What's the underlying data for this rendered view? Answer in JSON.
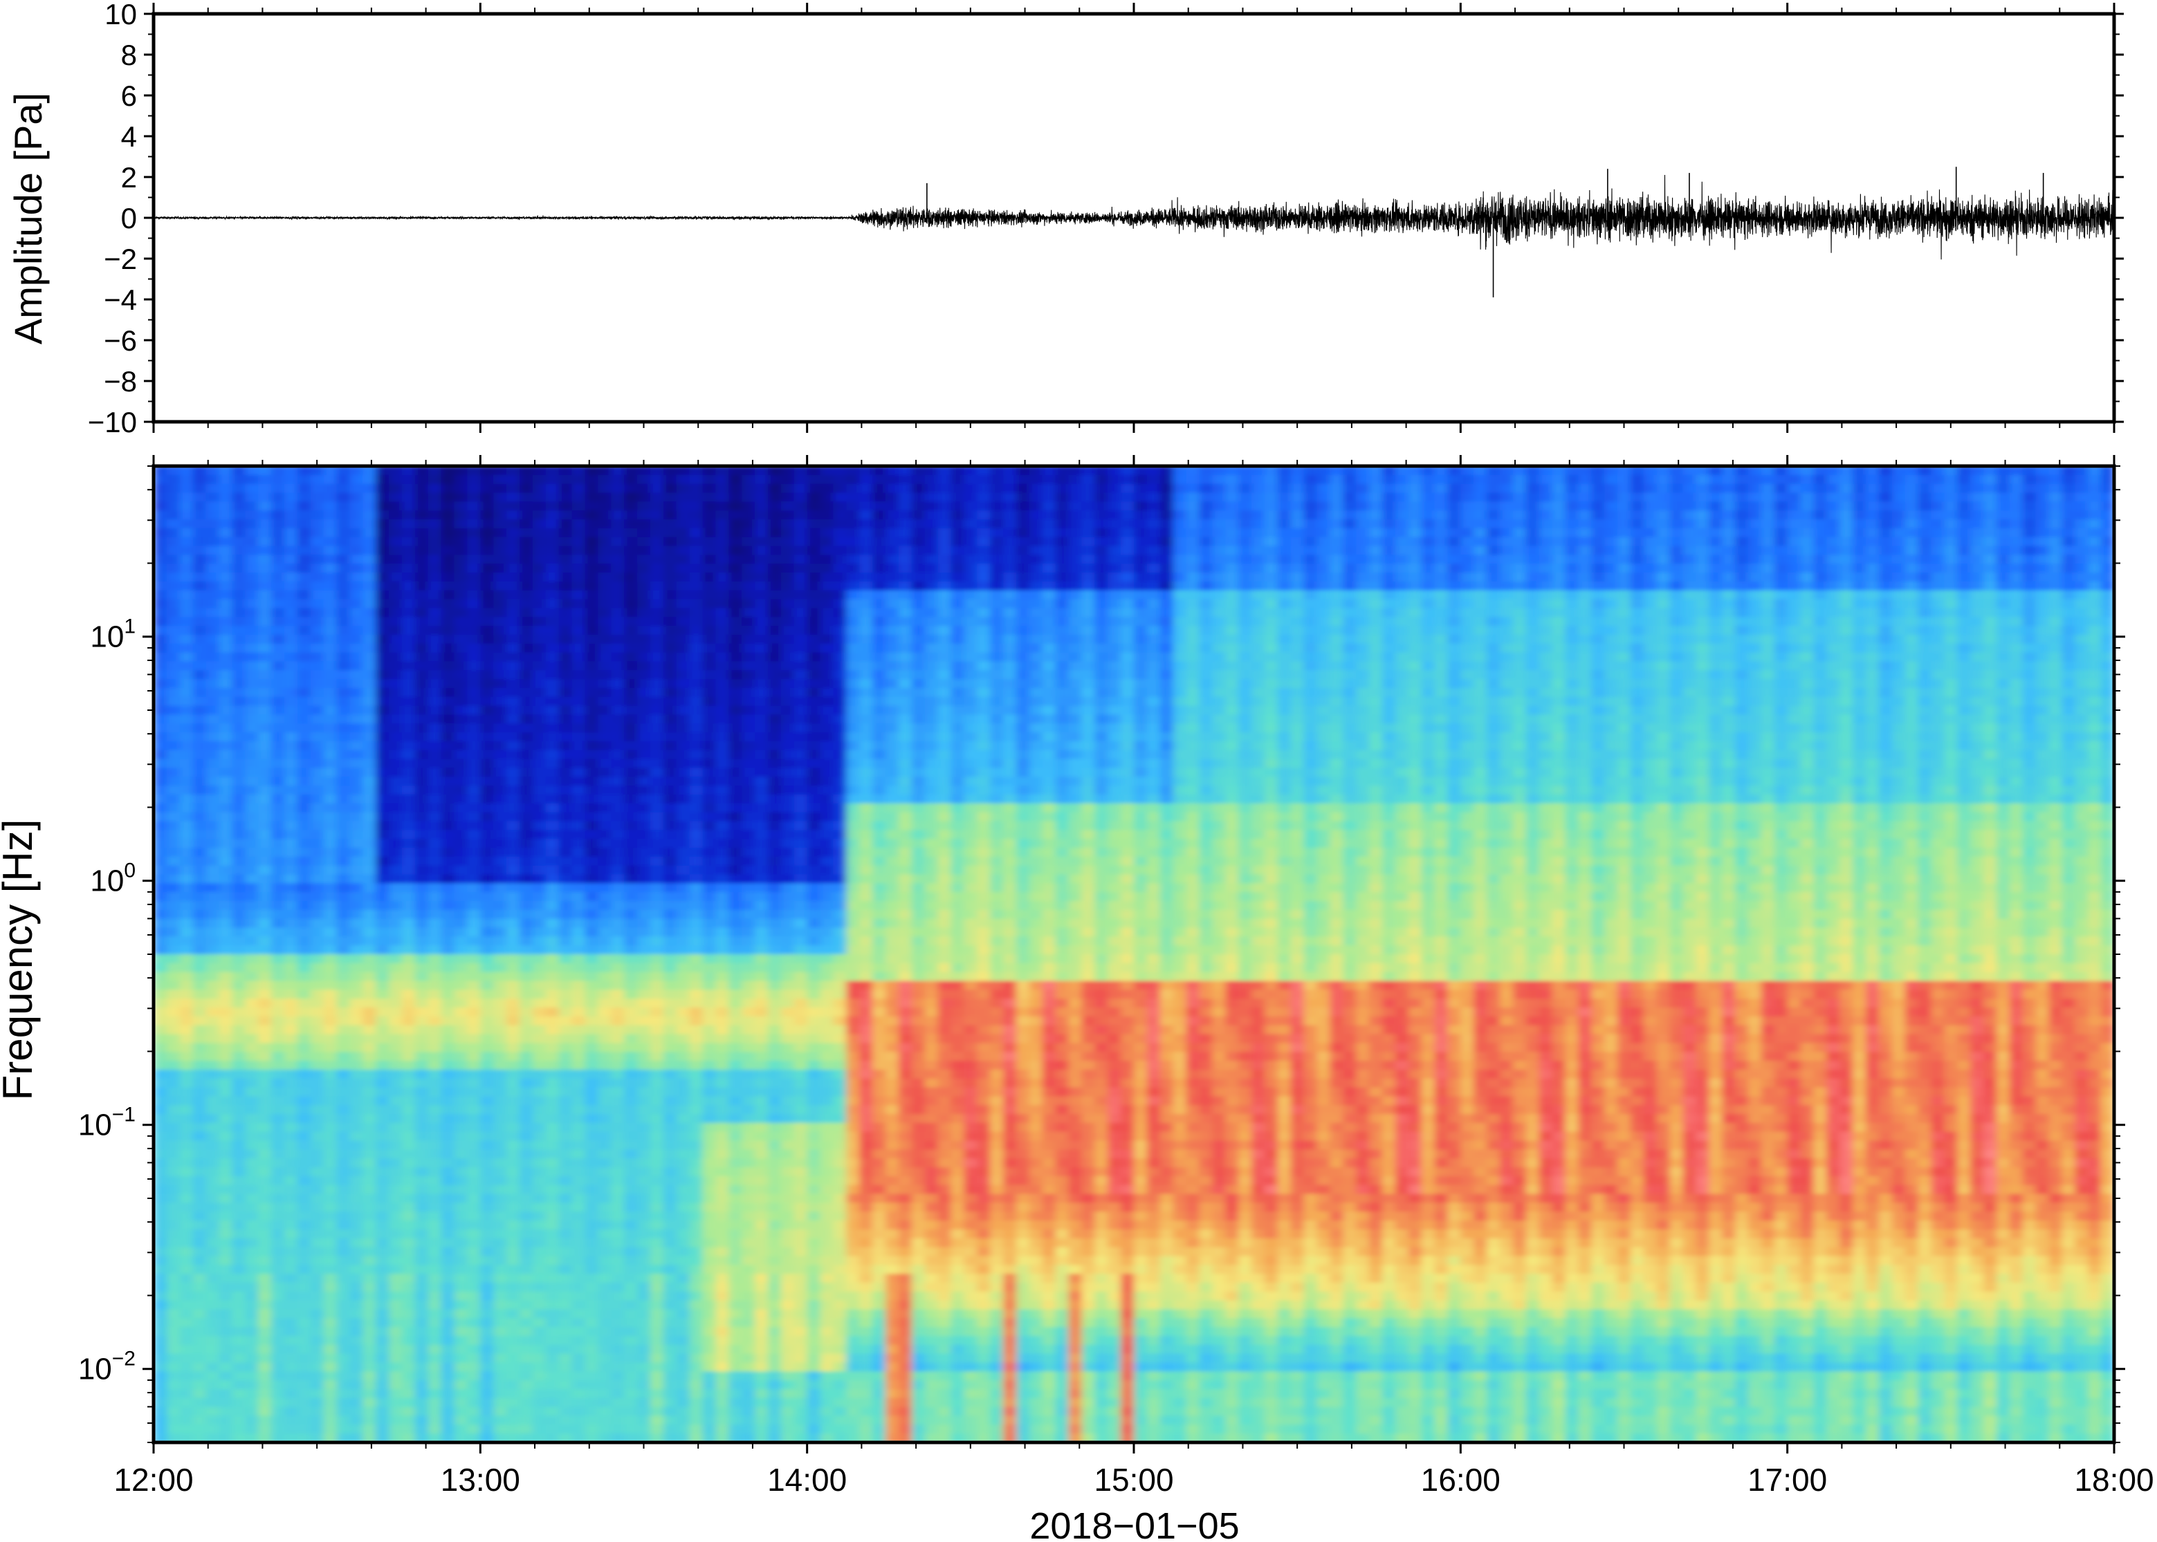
{
  "chart_data": [
    {
      "type": "line",
      "series_kind": "waveform",
      "ylabel": "Amplitude [Pa]",
      "ylim": [
        -10,
        10
      ],
      "yticks": [
        10,
        8,
        6,
        4,
        2,
        0,
        -2,
        -4,
        -6,
        -8,
        -10
      ],
      "ytick_labels": [
        "10",
        "8",
        "6",
        "4",
        "2",
        "0",
        "−2",
        "−4",
        "−6",
        "−8",
        "−10"
      ],
      "xlim": [
        "12:00",
        "18:00"
      ],
      "envelope": {
        "time": [
          "12:00",
          "13:00",
          "13:45",
          "14:08",
          "14:12",
          "14:20",
          "14:40",
          "14:55",
          "15:05",
          "15:20",
          "15:40",
          "16:00",
          "16:05",
          "16:20",
          "16:30",
          "16:45",
          "17:00",
          "17:20",
          "17:30",
          "17:45",
          "18:00"
        ],
        "amplitude": [
          0.1,
          0.1,
          0.15,
          0.1,
          0.9,
          1.0,
          0.6,
          0.5,
          0.9,
          1.2,
          1.3,
          1.4,
          2.5,
          1.7,
          2.2,
          1.8,
          1.6,
          1.7,
          2.0,
          1.9,
          1.8
        ]
      },
      "peak_events": [
        {
          "time": "14:22",
          "amplitude": 1.7
        },
        {
          "time": "16:06",
          "amplitude": -3.9
        },
        {
          "time": "16:27",
          "amplitude": 2.4
        },
        {
          "time": "16:42",
          "amplitude": 2.2
        },
        {
          "time": "17:31",
          "amplitude": 2.5
        },
        {
          "time": "17:47",
          "amplitude": 2.2
        }
      ],
      "grid": false
    },
    {
      "type": "heatmap",
      "ylabel": "Frequency [Hz]",
      "xlabel": "2018−01−05",
      "yscale": "log",
      "ylim": [
        0.005,
        50
      ],
      "ytick_labels": [
        {
          "base": "10",
          "exp": "1",
          "value": 10
        },
        {
          "base": "10",
          "exp": "0",
          "value": 1
        },
        {
          "base": "10",
          "exp": "−1",
          "value": 0.1
        },
        {
          "base": "10",
          "exp": "−2",
          "value": 0.01
        }
      ],
      "xtick_labels": [
        "12:00",
        "13:00",
        "14:00",
        "15:00",
        "16:00",
        "17:00",
        "18:00"
      ],
      "xlim": [
        "12:00",
        "18:00"
      ],
      "colormap": "jet",
      "colors": {
        "low": "#0a0a8a",
        "mid_low": "#2f8bff",
        "mid": "#5fe0d0",
        "mid_high": "#f5e880",
        "high": "#f05050",
        "peak": "#ff8a8a"
      },
      "regions": [
        {
          "time": [
            "12:00",
            "14:07"
          ],
          "frequency_band_hz": [
            1,
            50
          ],
          "level": "low"
        },
        {
          "time": [
            "12:00",
            "14:07"
          ],
          "frequency_band_hz": [
            0.17,
            0.5
          ],
          "level": "mid_high"
        },
        {
          "time": [
            "12:00",
            "14:07"
          ],
          "frequency_band_hz": [
            0.005,
            0.17
          ],
          "level": "mid"
        },
        {
          "time": [
            "14:07",
            "15:08"
          ],
          "frequency_band_hz": [
            0.015,
            0.25
          ],
          "level": "high"
        },
        {
          "time": [
            "15:08",
            "18:00"
          ],
          "frequency_band_hz": [
            0.02,
            0.3
          ],
          "level": "high"
        },
        {
          "time": [
            "14:07",
            "18:00"
          ],
          "frequency_band_hz": [
            0.3,
            5
          ],
          "level": "mid"
        },
        {
          "time": [
            "15:08",
            "18:00"
          ],
          "frequency_band_hz": [
            5,
            50
          ],
          "level": "mid_low"
        }
      ],
      "grid": false
    }
  ]
}
